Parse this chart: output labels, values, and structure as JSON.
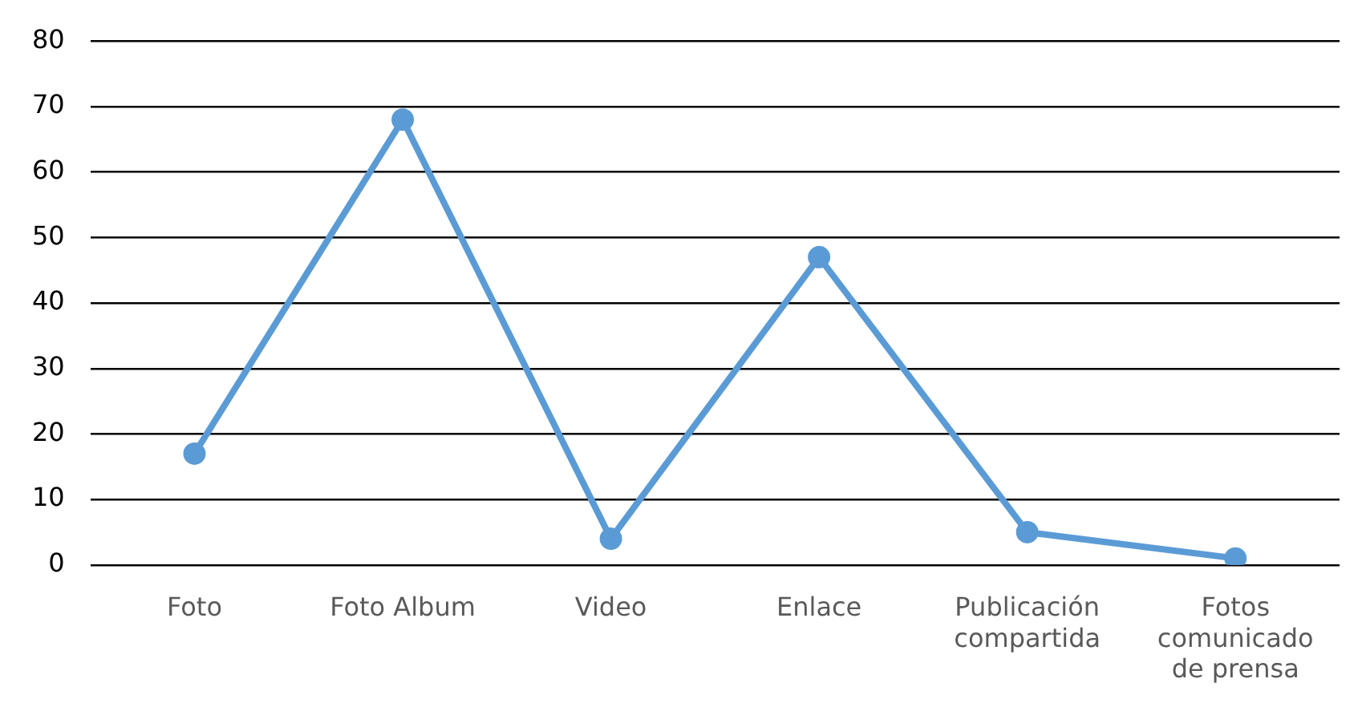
{
  "chart_data": {
    "type": "line",
    "categories": [
      "Foto",
      "Foto Album",
      "Video",
      "Enlace",
      "Publicación compartida",
      "Fotos comunicado de prensa"
    ],
    "series": [
      {
        "color": "#5b9bd5",
        "values": [
          17,
          68,
          4,
          47,
          5,
          1
        ]
      }
    ],
    "ylim": [
      0,
      80
    ],
    "yticks": [
      0,
      10,
      20,
      30,
      40,
      50,
      60,
      70,
      80
    ],
    "grid": "y",
    "legend": false,
    "marker": "circle",
    "line_style": "solid"
  }
}
